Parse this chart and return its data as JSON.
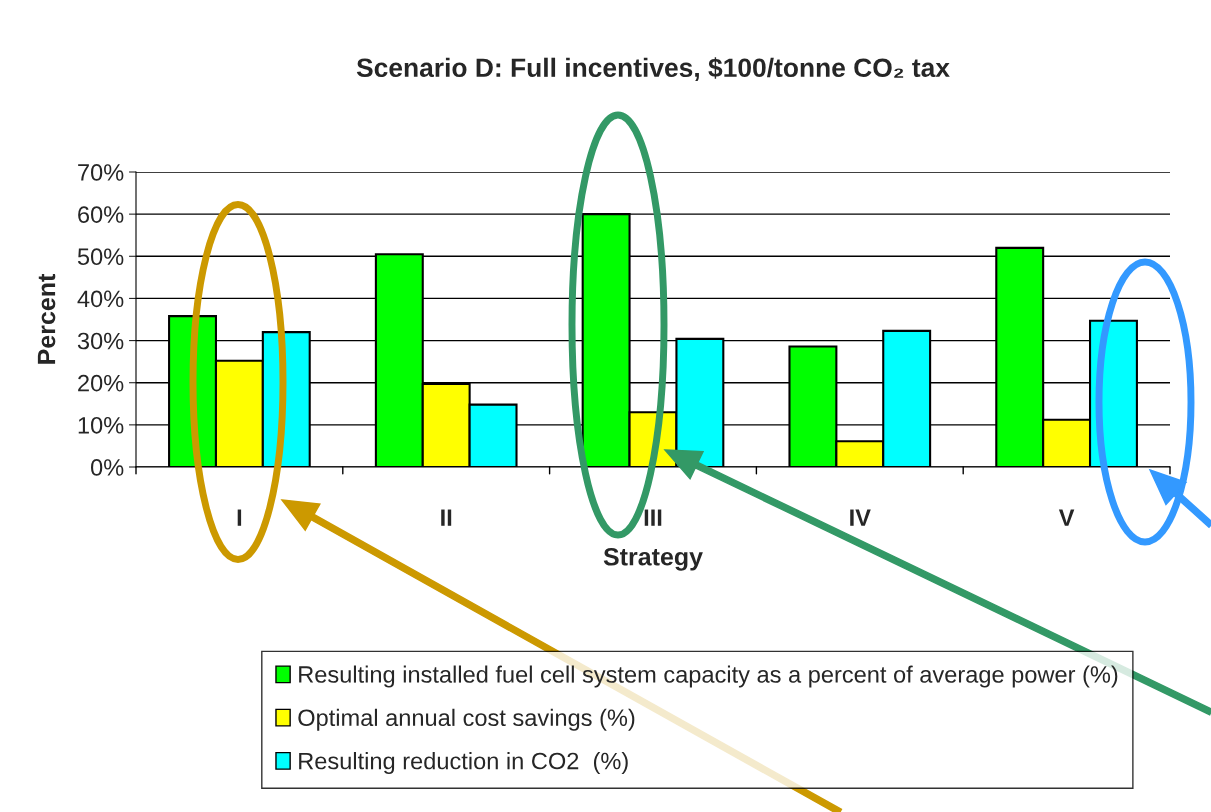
{
  "chart_data": {
    "type": "bar",
    "title": "Scenario D: Full incentives, $100/tonne CO₂ tax",
    "xlabel": "Strategy",
    "ylabel": "Percent",
    "categories": [
      "I",
      "II",
      "III",
      "IV",
      "V"
    ],
    "series": [
      {
        "name": "Resulting installed fuel cell system capacity as a percent of average power (%)",
        "color": "#00ff00",
        "values": [
          35.8,
          50.5,
          60,
          28.6,
          52
        ]
      },
      {
        "name": "Optimal annual cost savings (%)",
        "color": "#ffff00",
        "values": [
          25.2,
          19.7,
          13,
          6.1,
          11.2
        ]
      },
      {
        "name": "Resulting reduction in CO2  (%)",
        "color": "#00ffff",
        "values": [
          32,
          14.8,
          30.4,
          32.3,
          34.7
        ]
      }
    ],
    "ylim": [
      0,
      70
    ],
    "yticks": [
      {
        "value": 0,
        "label": "0%"
      },
      {
        "value": 10,
        "label": "10%"
      },
      {
        "value": 20,
        "label": "20%"
      },
      {
        "value": 30,
        "label": "30%"
      },
      {
        "value": 40,
        "label": "40%"
      },
      {
        "value": 50,
        "label": "50%"
      },
      {
        "value": 60,
        "label": "60%"
      },
      {
        "value": 70,
        "label": "70%"
      }
    ],
    "grid": "y",
    "legend": "bottom"
  }
}
